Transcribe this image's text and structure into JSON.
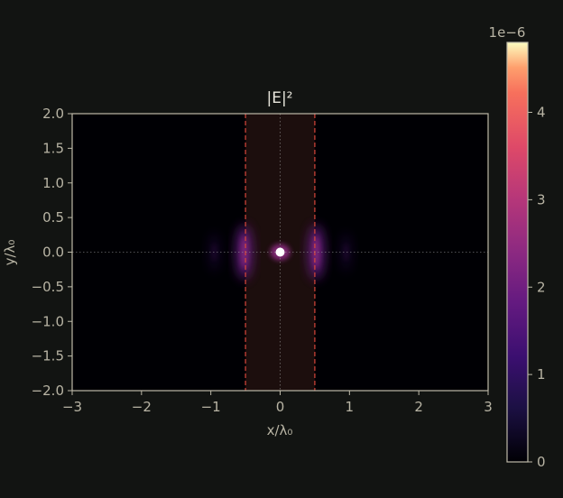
{
  "chart_data": {
    "type": "heatmap",
    "title": "|E|²",
    "xlabel": "x/λ₀",
    "ylabel": "y/λ₀",
    "xlim": [
      -3,
      3
    ],
    "ylim": [
      -2,
      2
    ],
    "xticks": [
      -3,
      -2,
      -1,
      0,
      1,
      2,
      3
    ],
    "yticks": [
      2.0,
      1.5,
      1.0,
      0.5,
      0.0,
      -0.5,
      -1.0,
      -1.5,
      -2.0
    ],
    "xtick_labels": [
      "−3",
      "−2",
      "−1",
      "0",
      "1",
      "2",
      "3"
    ],
    "ytick_labels": [
      "2.0",
      "1.5",
      "1.0",
      "0.5",
      "0.0",
      "−0.5",
      "−1.0",
      "−1.5",
      "−2.0"
    ],
    "colormap": "magma",
    "colorbar": {
      "range": [
        0,
        4.8e-06
      ],
      "ticks": [
        0,
        1,
        2,
        3,
        4
      ],
      "tick_labels": [
        "0",
        "1",
        "2",
        "3",
        "4"
      ],
      "offset_label": "1e−6"
    },
    "slab": {
      "x_range": [
        -0.5,
        0.5
      ],
      "edge_color": "#d9473a"
    },
    "source": {
      "x": 0,
      "y": 0
    },
    "field_lobes": [
      {
        "x": -0.52,
        "y": 0.0,
        "relative_intensity": 0.45
      },
      {
        "x": 0.52,
        "y": 0.0,
        "relative_intensity": 0.45
      },
      {
        "x": -0.95,
        "y": 0.0,
        "relative_intensity": 0.12
      },
      {
        "x": 0.95,
        "y": 0.0,
        "relative_intensity": 0.12
      },
      {
        "x": 0.0,
        "y": 0.0,
        "relative_intensity": 1.0
      }
    ]
  },
  "colors": {
    "background": "#121412",
    "axes_edge": "#bdb9a8",
    "slab_fill": "#1c0e0d",
    "source_marker": "#ffffff"
  }
}
